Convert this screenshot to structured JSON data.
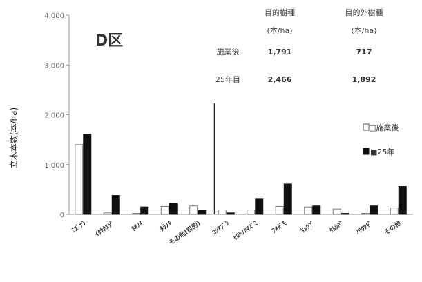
{
  "chart_data": {
    "type": "bar",
    "title": "D区",
    "ylabel": "立木本数(本/ha)",
    "ylim": [
      0,
      4000
    ],
    "yticks": [
      "0",
      "1,000",
      "2,000",
      "3,000",
      "4,000"
    ],
    "ytick_values": [
      0,
      1000,
      2000,
      3000,
      4000
    ],
    "grid": false,
    "legend_position": "right",
    "categories": [
      "ﾐｽﾞﾅﾗ",
      "ｲﾀﾔｶｴﾃﾞ",
      "ﾎｵﾉｷ",
      "ﾀﾗﾉｷ",
      "その他(目的)",
      "ｺｼｱﾌﾞﾗ",
      "ﾋﾛﾊﾉｶﾏｽﾞﾐ",
      "ｱｵﾀﾞﾓ",
      "ﾘｮｳﾌﾞ",
      "ﾀﾑｼﾊﾞ",
      "ﾉﾘｳﾂｷﾞ",
      "その他"
    ],
    "series": [
      {
        "name": "施業後",
        "values": [
          1400,
          30,
          20,
          160,
          170,
          90,
          90,
          160,
          150,
          110,
          20,
          130
        ],
        "color": "#ffffff"
      },
      {
        "name": "25年",
        "values": [
          1610,
          380,
          150,
          220,
          80,
          30,
          320,
          610,
          170,
          20,
          170,
          560
        ],
        "color": "#111111"
      }
    ],
    "table": {
      "col_headers": [
        "目的樹種\n(本/ha)",
        "目的外樹種\n(本/ha)"
      ],
      "rows": [
        {
          "label": "施業後",
          "values": [
            "1,791",
            "717"
          ]
        },
        {
          "label": "25年目",
          "values": [
            "2,466",
            "1,892"
          ]
        }
      ]
    },
    "legend": [
      "□施業後",
      "■25年"
    ]
  }
}
